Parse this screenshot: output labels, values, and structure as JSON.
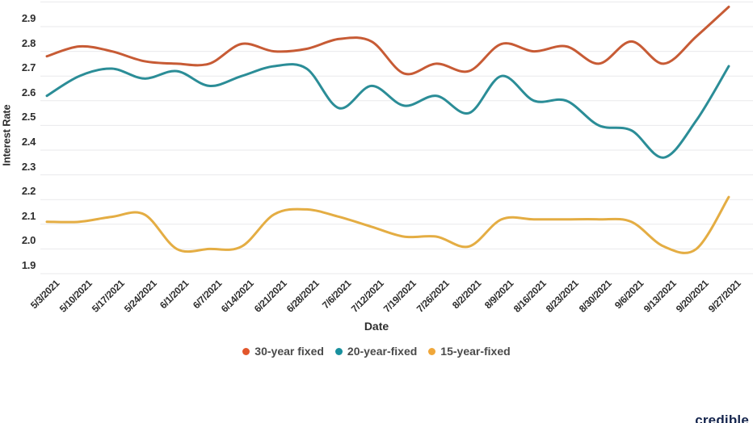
{
  "watermark": "credible",
  "chart_data": {
    "type": "line",
    "title": "",
    "xlabel": "Date",
    "ylabel": "Interest Rate",
    "ylim": [
      1.9,
      3.0
    ],
    "grid": "horizontal-only",
    "legend_position": "bottom-center",
    "background": "#ffffff",
    "gridline_color": "#e9e9eb",
    "ytick_labels": [
      "2.9",
      "2.8",
      "2.7",
      "2.6",
      "2.5",
      "2.4",
      "2.3",
      "2.2",
      "2.1",
      "2.0",
      "1.9"
    ],
    "x": [
      "5/3/2021",
      "5/10/2021",
      "5/17/2021",
      "5/24/2021",
      "6/1/2021",
      "6/7/2021",
      "6/14/2021",
      "6/21/2021",
      "6/28/2021",
      "7/6/2021",
      "7/12/2021",
      "7/19/2021",
      "7/26/2021",
      "8/2/2021",
      "8/9/2021",
      "8/16/2021",
      "8/23/2021",
      "8/30/2021",
      "9/6/2021",
      "9/13/2021",
      "9/20/2021",
      "9/27/2021"
    ],
    "series": [
      {
        "name": "30-year fixed",
        "color": "#c75b35",
        "marker_color": "#e2562b",
        "values": [
          2.78,
          2.82,
          2.8,
          2.76,
          2.75,
          2.75,
          2.83,
          2.8,
          2.81,
          2.85,
          2.84,
          2.71,
          2.75,
          2.72,
          2.83,
          2.8,
          2.82,
          2.75,
          2.84,
          2.75,
          2.86,
          2.98
        ]
      },
      {
        "name": "20-year-fixed",
        "color": "#2b8d97",
        "marker_color": "#18909e",
        "values": [
          2.62,
          2.7,
          2.73,
          2.69,
          2.72,
          2.66,
          2.7,
          2.74,
          2.73,
          2.57,
          2.66,
          2.58,
          2.62,
          2.55,
          2.7,
          2.6,
          2.6,
          2.5,
          2.48,
          2.37,
          2.52,
          2.74
        ]
      },
      {
        "name": "15-year-fixed",
        "color": "#e4ad43",
        "marker_color": "#f0a73a",
        "values": [
          2.11,
          2.11,
          2.13,
          2.14,
          2.0,
          2.0,
          2.01,
          2.14,
          2.16,
          2.13,
          2.09,
          2.05,
          2.05,
          2.01,
          2.12,
          2.12,
          2.12,
          2.12,
          2.11,
          2.01,
          2.0,
          2.21
        ]
      }
    ]
  }
}
